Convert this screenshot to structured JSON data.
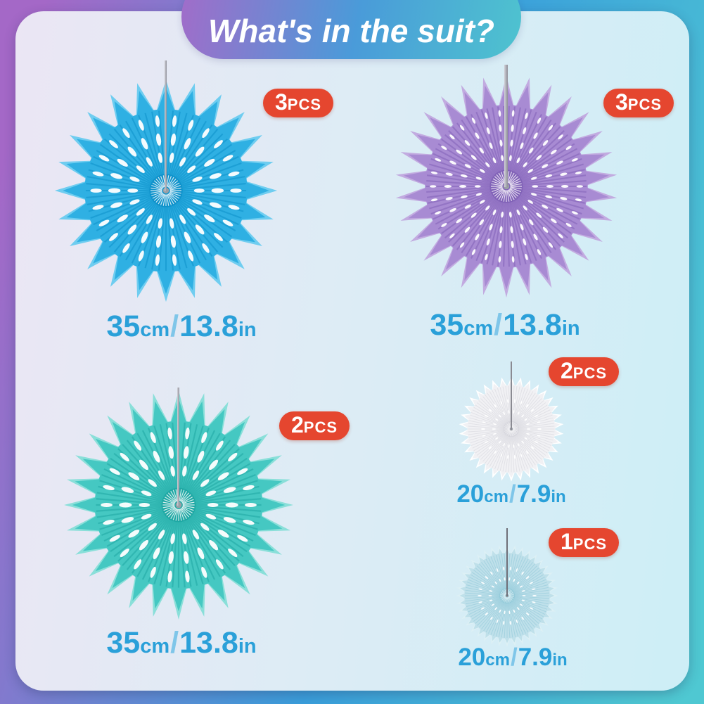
{
  "banner": {
    "title": "What's in the suit?"
  },
  "colors": {
    "outer_gradient": [
      "#a468c7",
      "#3a9edb",
      "#4fc8d2"
    ],
    "banner_gradient": [
      "#a26cc9",
      "#4a9bd9",
      "#4ec3cf"
    ],
    "card_gradient": [
      "#ebe6f4",
      "#ddecf5",
      "#cdeef6"
    ],
    "badge_bg": "#e5462f",
    "badge_text": "#ffffff",
    "size_text": "#2aa0d9",
    "size_slash": "#7fc6e9",
    "string": "#9a9aa2"
  },
  "fans": [
    {
      "color_name": "blue",
      "badge": {
        "count": "3",
        "unit": "PCS"
      },
      "size_label": "35cm/13.8in",
      "pattern": "ovals",
      "spikes": 24,
      "colors": {
        "main": "#2fb0e3",
        "light": "#6fcdf0",
        "dark": "#0e92cb"
      }
    },
    {
      "color_name": "purple",
      "badge": {
        "count": "3",
        "unit": "PCS"
      },
      "size_label": "35cm/13.8in",
      "pattern": "dots",
      "spikes": 30,
      "colors": {
        "main": "#a88bd3",
        "light": "#c2abe0",
        "dark": "#8263b8"
      }
    },
    {
      "color_name": "teal",
      "badge": {
        "count": "2",
        "unit": "PCS"
      },
      "size_label": "35cm/13.8in",
      "pattern": "ovals",
      "spikes": 28,
      "colors": {
        "main": "#45c8c2",
        "light": "#8adfd9",
        "dark": "#1fa8a4"
      }
    },
    {
      "color_name": "white",
      "badge": {
        "count": "2",
        "unit": "PCS"
      },
      "size_label": "20cm/7.9in",
      "pattern": "subtle",
      "spikes": 34,
      "colors": {
        "main": "#f1f1f4",
        "light": "#ffffff",
        "dark": "#d5d5dc"
      }
    },
    {
      "color_name": "light-blue",
      "badge": {
        "count": "1",
        "unit": "PCS"
      },
      "size_label": "20cm/7.9in",
      "pattern": "subtle",
      "spikes": 40,
      "colors": {
        "main": "#bfe0ea",
        "light": "#ddf0f5",
        "dark": "#8ec8d8"
      }
    }
  ]
}
